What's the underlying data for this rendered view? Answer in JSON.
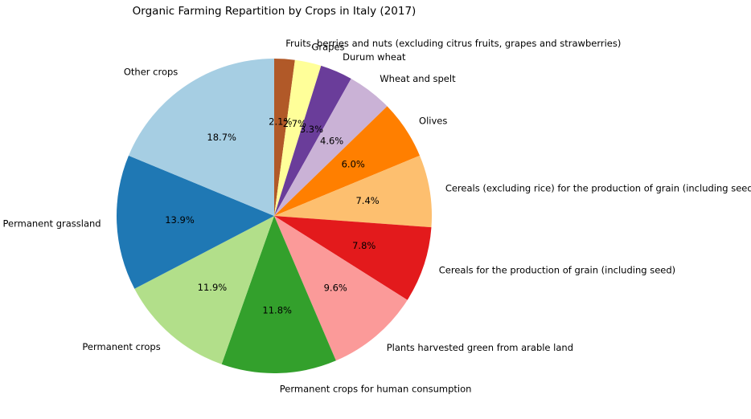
{
  "chart_data": {
    "type": "pie",
    "title": "Organic Farming Repartition by Crops in Italy (2017)",
    "categories": [
      "Fruits, berries and nuts (excluding citrus fruits, grapes and strawberries)",
      "Grapes",
      "Durum wheat",
      "Wheat and spelt",
      "Olives",
      "Cereals (excluding rice) for the production of grain (including seed)",
      "Cereals for the production of grain (including seed)",
      "Plants harvested green from arable land",
      "Permanent crops for human consumption",
      "Permanent crops",
      "Permanent grassland",
      "Other crops"
    ],
    "values": [
      2.1,
      2.7,
      3.3,
      4.6,
      6.0,
      7.4,
      7.8,
      9.6,
      11.8,
      11.9,
      13.9,
      18.7
    ],
    "percent_labels": [
      "2.1%",
      "2.7%",
      "3.3%",
      "4.6%",
      "6.0%",
      "7.4%",
      "7.8%",
      "9.6%",
      "11.8%",
      "11.9%",
      "13.9%",
      "18.7%"
    ],
    "colors": [
      "#b15928",
      "#ffff99",
      "#6a3d9a",
      "#cab2d6",
      "#ff7f00",
      "#fdbf6f",
      "#e31a1c",
      "#fb9a99",
      "#33a02c",
      "#b2df8a",
      "#1f78b4",
      "#a6cee3"
    ],
    "start_angle_deg": 90,
    "direction": "clockwise",
    "legend": "none"
  }
}
